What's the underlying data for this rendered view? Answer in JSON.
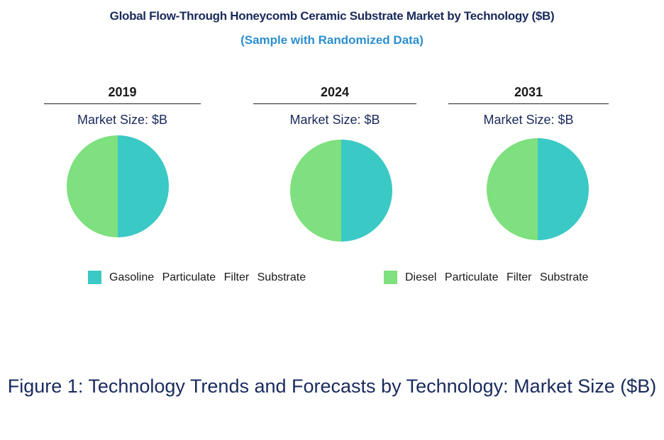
{
  "chart_data": {
    "type": "pie",
    "title": "Global Flow-Through Honeycomb Ceramic Substrate Market by Technology ($B)",
    "subtitle": "(Sample with Randomized Data)",
    "series_names": [
      "Gasoline Particulate Filter Substrate",
      "Diesel Particulate Filter Substrate"
    ],
    "colors": [
      "#3ac9c5",
      "#7ee07e"
    ],
    "panels": [
      {
        "year": "2019",
        "market_size": "Market Size: $B",
        "values": [
          50,
          50
        ]
      },
      {
        "year": "2024",
        "market_size": "Market Size: $B",
        "values": [
          50,
          50
        ]
      },
      {
        "year": "2031",
        "market_size": "Market Size: $B",
        "values": [
          50,
          50
        ]
      }
    ],
    "caption": "Figure 1: Technology Trends and Forecasts by Technology: Market Size ($B)"
  }
}
